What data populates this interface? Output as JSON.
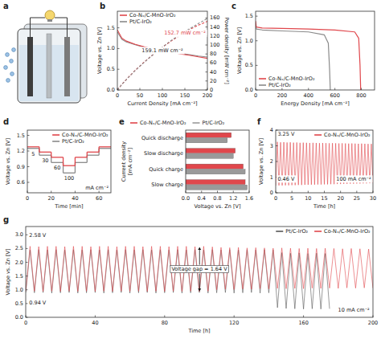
{
  "chart_data": [
    {
      "type": "diagram",
      "panel": "a"
    },
    {
      "type": "line",
      "panel": "b",
      "xlabel": "Current Density [mA cm⁻²]",
      "ylabel": "Voltage vs. Zn [V]",
      "y2label": "Power density [mW cm⁻²]",
      "xlim": [
        0,
        200
      ],
      "xticks": [
        0,
        50,
        100,
        150,
        200
      ],
      "ylim": [
        0,
        1.9
      ],
      "yticks": [
        {
          "value": 0,
          "label": "0.0"
        },
        0.5,
        {
          "value": 1,
          "label": "1.0"
        },
        1.5
      ],
      "y2lim": [
        0,
        175
      ],
      "y2ticks": [
        0,
        20,
        40,
        60,
        80,
        100,
        120,
        140,
        160
      ],
      "legend": "upper left",
      "series": [
        {
          "name": "Co-Nₓ/C-MnO-IrO₂",
          "color": "#e0474c",
          "line_style": "solid",
          "x": [
            0,
            10,
            20,
            40,
            60,
            80,
            100,
            120,
            140,
            160,
            180,
            200
          ],
          "values": [
            1.45,
            1.25,
            1.18,
            1.1,
            1.04,
            0.99,
            0.95,
            0.91,
            0.87,
            0.84,
            0.8,
            0.764
          ]
        },
        {
          "name": "Pt/C-IrO₂",
          "color": "#8a8a8a",
          "line_style": "solid",
          "x": [
            0,
            10,
            20,
            40,
            60,
            80,
            100,
            120,
            140,
            160,
            180,
            200
          ],
          "values": [
            1.4,
            1.22,
            1.16,
            1.09,
            1.03,
            0.99,
            0.95,
            0.92,
            0.88,
            0.85,
            0.82,
            0.796
          ]
        },
        {
          "name": "Co-Nₓ/C-MnO-IrO₂",
          "color": "#e0474c",
          "line_style": "dashed",
          "axis": "y2",
          "x": [
            0,
            10,
            20,
            40,
            60,
            80,
            100,
            120,
            140,
            160,
            180,
            200
          ],
          "values": [
            0,
            12.5,
            23.6,
            44,
            62.4,
            79.2,
            95,
            109.2,
            121.8,
            134.4,
            144,
            152.7
          ]
        },
        {
          "name": "Pt/C-IrO₂",
          "color": "#8a8a8a",
          "line_style": "dashed",
          "axis": "y2",
          "x": [
            0,
            10,
            20,
            40,
            60,
            80,
            100,
            120,
            140,
            160,
            180,
            200
          ],
          "values": [
            0,
            12.2,
            23.2,
            43.6,
            61.8,
            79.2,
            95,
            110.4,
            123.2,
            136,
            147.6,
            159.1
          ]
        }
      ],
      "annotations": [
        {
          "text": "152.7 mW cm⁻²",
          "color": "#e0474c"
        },
        {
          "text": "159.1 mW cm⁻²",
          "color": "#222222"
        }
      ]
    },
    {
      "type": "line",
      "panel": "c",
      "xlabel": "Energy Density [mA cm⁻²]",
      "ylabel": "Voltage vs. Zn [V]",
      "xlim": [
        0,
        900
      ],
      "xticks": [
        0,
        200,
        400,
        600,
        800
      ],
      "ylim": [
        0,
        1.6
      ],
      "yticks": [
        {
          "value": 0,
          "label": "0.0"
        },
        0.5,
        {
          "value": 1,
          "label": "1.0"
        },
        1.5
      ],
      "legend": "lower left",
      "series": [
        {
          "name": "Co-Nₓ/C-MnO-IrO₂",
          "color": "#e0474c",
          "x": [
            0,
            5,
            50,
            200,
            400,
            600,
            750,
            780,
            790,
            795
          ],
          "values": [
            1.4,
            1.28,
            1.26,
            1.25,
            1.24,
            1.22,
            1.18,
            1.05,
            0.5,
            0.0
          ]
        },
        {
          "name": "Pt/C-IrO₂",
          "color": "#8a8a8a",
          "x": [
            0,
            5,
            50,
            200,
            400,
            520,
            550,
            560,
            565
          ],
          "values": [
            1.35,
            1.24,
            1.22,
            1.2,
            1.18,
            1.12,
            0.95,
            0.4,
            0.0
          ]
        }
      ]
    },
    {
      "type": "line",
      "panel": "d",
      "xlabel": "Time [min]",
      "ylabel": "Voltage vs. Zn [V]",
      "xlim": [
        0,
        70
      ],
      "xticks": [
        0,
        20,
        40,
        60
      ],
      "ylim": [
        0.4,
        1.6
      ],
      "yticks": [
        0.6,
        0.9,
        1.2,
        1.5
      ],
      "legend": "upper right",
      "series": [
        {
          "name": "Co-Nₓ/C-MnO-IrO₂",
          "color": "#e0474c",
          "line_style": "steps",
          "x": [
            0,
            10,
            20,
            30,
            40,
            50,
            60
          ],
          "values": [
            1.28,
            1.18,
            1.08,
            0.92,
            1.08,
            1.18,
            1.28
          ]
        },
        {
          "name": "Pt/C-IrO₂",
          "color": "#8a8a8a",
          "line_style": "steps",
          "x": [
            0,
            10,
            20,
            30,
            40,
            50,
            60
          ],
          "values": [
            1.25,
            1.12,
            0.98,
            0.78,
            0.98,
            1.12,
            1.25
          ]
        }
      ],
      "step_labels": [
        5,
        30,
        60,
        100,
        null,
        null,
        null
      ],
      "unit_label": "mA cm⁻²"
    },
    {
      "type": "bar",
      "panel": "e",
      "orientation": "horizontal",
      "xlabel": "Voltage vs. Zn [V]",
      "ylabel": "Current density [mA cm⁻²]",
      "categories": [
        "Quick discharge",
        "Slow discharge",
        "Quick charge",
        "Slow charge"
      ],
      "xlim": [
        0,
        1.6
      ],
      "xticks": [
        {
          "value": 0,
          "label": "0.0"
        },
        0.4,
        0.8,
        1.2,
        1.6
      ],
      "legend": "top",
      "series": [
        {
          "name": "Co-Nₓ/C-MnO-IrO₂",
          "color": "#e0474c",
          "values": [
            1.15,
            1.25,
            1.45,
            1.5
          ]
        },
        {
          "name": "Pt/C-IrO₂",
          "color": "#9a9a9a",
          "values": [
            1.05,
            1.2,
            1.5,
            1.55
          ]
        }
      ]
    },
    {
      "type": "line",
      "panel": "f",
      "xlabel": "Time [h]",
      "ylabel": "Voltage vs. Zn [V]",
      "xlim": [
        0,
        30
      ],
      "xticks": [
        0,
        5,
        10,
        15,
        20,
        25,
        30
      ],
      "ylim": [
        0,
        4
      ],
      "yticks": [
        0,
        1,
        2,
        3,
        4
      ],
      "legend": "upper right",
      "series": [
        {
          "name": "Co-Nₓ/C-MnO-IrO₂",
          "color": "#e0474c",
          "x": [
            0,
            0.5,
            1,
            1.5,
            2,
            2.5,
            3,
            3.5,
            4,
            4.5,
            5,
            5.5,
            6,
            6.5,
            7,
            7.5,
            8,
            8.5,
            9,
            9.5,
            10,
            10.5,
            11,
            11.5,
            12,
            12.5,
            13,
            13.5,
            14,
            14.5,
            15,
            15.5,
            16,
            16.5,
            17,
            17.5,
            18,
            18.5,
            19,
            19.5,
            20,
            20.5,
            21,
            21.5,
            22,
            22.5,
            23,
            23.5,
            24,
            24.5,
            25,
            25.5,
            26,
            26.5,
            27,
            27.5,
            28,
            28.5,
            29,
            29.5,
            30
          ],
          "values": [
            0.46,
            3.25,
            0.47,
            3.22,
            0.47,
            3.23,
            0.48,
            3.21,
            0.48,
            3.22,
            0.49,
            3.2,
            0.49,
            3.21,
            0.5,
            3.19,
            0.5,
            3.2,
            0.51,
            3.19,
            0.51,
            3.18,
            0.52,
            3.19,
            0.52,
            3.18,
            0.53,
            3.17,
            0.53,
            3.18,
            0.54,
            3.17,
            0.54,
            3.16,
            0.55,
            3.17,
            0.55,
            3.16,
            0.56,
            3.15,
            0.56,
            3.16,
            0.57,
            3.15,
            0.57,
            3.14,
            0.58,
            3.15,
            0.58,
            3.14,
            0.59,
            3.13,
            0.59,
            3.14,
            0.6,
            3.13,
            0.6,
            3.12,
            0.61,
            3.12,
            0.61
          ]
        }
      ],
      "annotations": [
        {
          "text": "3.25 V"
        },
        {
          "text": "0.46 V"
        },
        {
          "text": "100 mA cm⁻²"
        }
      ]
    },
    {
      "type": "line",
      "panel": "g",
      "xlabel": "Time [h]",
      "ylabel": "Voltage vs. Zn [V]",
      "xlim": [
        0,
        200
      ],
      "xticks": [
        0,
        40,
        80,
        120,
        160,
        200
      ],
      "ylim": [
        0,
        3.3
      ],
      "yticks": [
        {
          "value": 0,
          "label": "0.0"
        },
        0.5,
        {
          "value": 1,
          "label": "1.0"
        },
        1.5,
        {
          "value": 2,
          "label": "2.0"
        },
        2.5,
        {
          "value": 3,
          "label": "3.0"
        }
      ],
      "legend": "upper right",
      "series": [
        {
          "name": "Pt/C-IrO₂",
          "color": "#555555",
          "x": [
            0,
            2.5,
            5,
            7.5,
            10,
            12.5,
            15,
            17.5,
            20,
            22.5,
            25,
            27.5,
            30,
            32.5,
            35,
            37.5,
            40,
            42.5,
            45,
            47.5,
            50,
            52.5,
            55,
            57.5,
            60,
            62.5,
            65,
            67.5,
            70,
            72.5,
            75,
            77.5,
            80,
            82.5,
            85,
            87.5,
            90,
            92.5,
            95,
            97.5,
            100,
            102.5,
            105,
            107.5,
            110,
            112.5,
            115,
            117.5,
            120,
            122.5,
            125,
            127.5,
            130,
            132.5,
            135,
            137.5,
            140,
            142.5,
            145,
            147.5,
            150,
            152.5,
            155,
            157.5,
            160,
            162.5,
            165,
            167.5,
            170,
            172.5,
            175
          ],
          "values": [
            0.9,
            2.45,
            0.89,
            2.46,
            0.9,
            2.45,
            0.88,
            2.46,
            0.89,
            2.45,
            0.9,
            2.46,
            0.88,
            2.45,
            0.89,
            2.46,
            0.9,
            2.45,
            0.88,
            2.46,
            0.89,
            2.45,
            0.9,
            2.46,
            0.88,
            2.45,
            0.89,
            2.46,
            0.9,
            2.45,
            0.88,
            2.46,
            0.89,
            2.45,
            0.9,
            2.46,
            0.88,
            2.45,
            0.89,
            2.46,
            0.9,
            2.45,
            0.88,
            2.46,
            0.89,
            2.45,
            0.9,
            2.46,
            0.88,
            2.45,
            0.89,
            2.46,
            0.9,
            2.45,
            0.88,
            2.46,
            0.89,
            2.45,
            0.35,
            2.35,
            0.32,
            2.33,
            0.31,
            2.34,
            0.3,
            2.32,
            0.31,
            2.33,
            0.3,
            2.32,
            0.31
          ]
        },
        {
          "name": "Co-Nₓ/C-MnO-IrO₂",
          "color": "#e0474c",
          "x": [
            0,
            2.5,
            5,
            7.5,
            10,
            12.5,
            15,
            17.5,
            20,
            22.5,
            25,
            27.5,
            30,
            32.5,
            35,
            37.5,
            40,
            42.5,
            45,
            47.5,
            50,
            52.5,
            55,
            57.5,
            60,
            62.5,
            65,
            67.5,
            70,
            72.5,
            75,
            77.5,
            80,
            82.5,
            85,
            87.5,
            90,
            92.5,
            95,
            97.5,
            100,
            102.5,
            105,
            107.5,
            110,
            112.5,
            115,
            117.5,
            120,
            122.5,
            125,
            127.5,
            130,
            132.5,
            135,
            137.5,
            140,
            142.5,
            145,
            147.5,
            150,
            152.5,
            155,
            157.5,
            160,
            162.5,
            165,
            167.5,
            170,
            172.5,
            175,
            177.5,
            180,
            182.5,
            185,
            187.5,
            190,
            192.5,
            195,
            197.5,
            200
          ],
          "values": [
            0.94,
            2.58,
            0.95,
            2.57,
            0.94,
            2.58,
            0.95,
            2.58,
            0.94,
            2.57,
            0.95,
            2.58,
            0.94,
            2.58,
            0.95,
            2.57,
            0.94,
            2.58,
            0.95,
            2.58,
            0.94,
            2.57,
            0.95,
            2.58,
            0.94,
            2.58,
            0.95,
            2.57,
            0.94,
            2.58,
            0.95,
            2.58,
            0.94,
            2.57,
            0.95,
            2.58,
            0.94,
            2.58,
            0.95,
            2.57,
            0.94,
            2.58,
            0.95,
            2.56,
            1.0,
            2.54,
            1.02,
            2.53,
            1.01,
            2.54,
            1.03,
            2.52,
            1.02,
            2.53,
            1.04,
            2.52,
            1.03,
            2.51,
            1.05,
            2.52,
            1.04,
            2.51,
            1.05,
            2.5,
            1.04,
            2.51,
            1.06,
            2.5,
            1.05,
            2.51,
            1.06,
            2.5,
            1.05,
            2.49,
            1.07,
            2.5,
            1.06,
            2.49,
            1.07,
            2.48,
            1.06
          ]
        }
      ],
      "annotations": [
        {
          "text": "2.58 V"
        },
        {
          "text": "0.94 V"
        },
        {
          "text": "Voltage gap = 1.64 V"
        },
        {
          "text": "10 mA cm⁻²"
        }
      ]
    }
  ]
}
